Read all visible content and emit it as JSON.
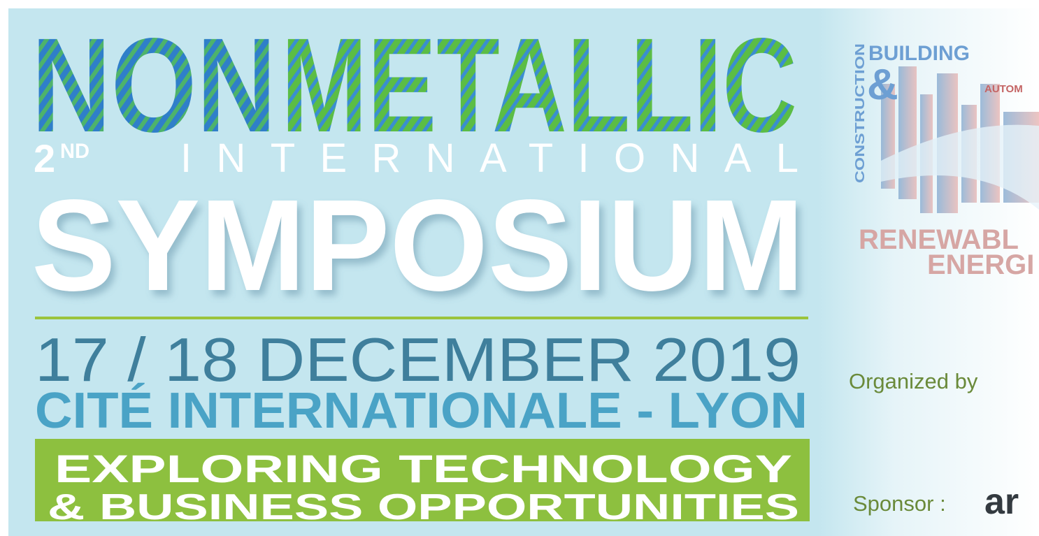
{
  "banner": {
    "title_part1": "NON",
    "title_part2": "METALLIC",
    "edition_number": "2",
    "edition_suffix": "ND",
    "international": "INTERNATIONAL",
    "symposium": "SYMPOSIUM",
    "dates": "17 / 18 DECEMBER 2019",
    "venue": "CITÉ INTERNATIONALE - LYON",
    "tagline_line1": "EXPLORING TECHNOLOGY",
    "tagline_line2": "& BUSINESS OPPORTUNITIES"
  },
  "side_panel": {
    "vertical_label": "CONSTRUCTION",
    "building": "BUILDING",
    "ampersand": "&",
    "automotive": "AUTOM",
    "renewable": "RENEWABL",
    "energy": "ENERGI",
    "organized_by": "Organized by",
    "sponsor": "Sponsor :",
    "sponsor_logo": "ar"
  }
}
